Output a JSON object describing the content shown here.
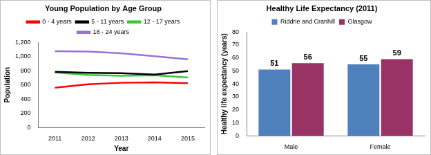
{
  "chart_data": [
    {
      "type": "line",
      "title": "Young Population by Age Group",
      "x_label": "Year",
      "y_label": "Population",
      "categories": [
        "2011",
        "2012",
        "2013",
        "2014",
        "2015"
      ],
      "series": [
        {
          "name": "0 - 4 years",
          "color": "#ff0000",
          "values": [
            560,
            610,
            630,
            635,
            625
          ]
        },
        {
          "name": "5 - 11 years",
          "color": "#000000",
          "values": [
            785,
            770,
            765,
            745,
            795
          ]
        },
        {
          "name": "12 - 17 years",
          "color": "#33cc33",
          "values": [
            775,
            740,
            730,
            735,
            705
          ]
        },
        {
          "name": "18 - 24 years",
          "color": "#9673d4",
          "values": [
            1075,
            1070,
            1045,
            1005,
            960
          ]
        }
      ],
      "ylim": [
        0,
        1200
      ],
      "yticks": [
        0,
        200,
        400,
        600,
        800,
        {
          "value": 1000,
          "label": "1,000"
        },
        {
          "value": 1200,
          "label": "1,200"
        }
      ],
      "grid": false,
      "legend": "top"
    },
    {
      "type": "bar",
      "title": "Healthy Life Expectancy (2011)",
      "y_label": "Healthy life expectancy (years)",
      "categories": [
        "Male",
        "Female"
      ],
      "series": [
        {
          "name": "Riddrie and Cranhill",
          "color": "#4f81bd",
          "values": [
            51,
            55
          ]
        },
        {
          "name": "Glasgow",
          "color": "#993366",
          "values": [
            56,
            59
          ]
        }
      ],
      "ylim": [
        0,
        80
      ],
      "yticks": [
        0,
        10,
        20,
        30,
        40,
        50,
        60,
        70,
        80
      ],
      "grid": false,
      "legend": "top",
      "data_labels": true
    }
  ]
}
